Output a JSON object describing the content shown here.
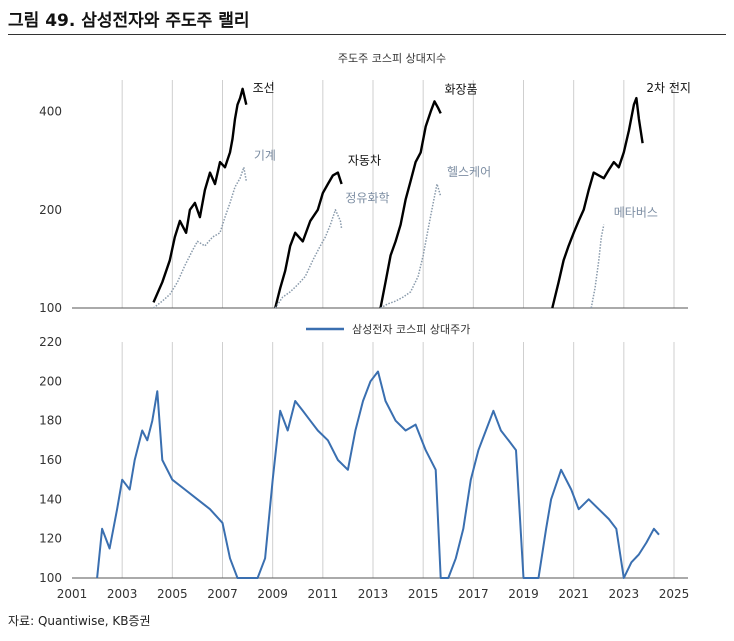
{
  "figure": {
    "title": "그림 49. 삼성전자와 주도주 랠리",
    "source": "자료: Quantiwise, KB증권"
  },
  "chart_data": [
    {
      "type": "line",
      "title": "주도주 코스피 상대지수",
      "ylim": [
        100,
        500
      ],
      "yscale": "log",
      "yticks": [
        100,
        200,
        400
      ],
      "grid": "vertical",
      "series": [
        {
          "name": "조선",
          "style": "solid",
          "color": "#000000",
          "x": [
            2004.25,
            2004.6,
            2004.9,
            2005.1,
            2005.3,
            2005.55,
            2005.7,
            2005.9,
            2006.1,
            2006.3,
            2006.5,
            2006.7,
            2006.9,
            2007.1,
            2007.3,
            2007.4,
            2007.5,
            2007.6,
            2007.7,
            2007.8,
            2007.95
          ],
          "y": [
            104,
            120,
            140,
            165,
            185,
            170,
            200,
            210,
            190,
            230,
            260,
            240,
            280,
            270,
            300,
            330,
            380,
            420,
            440,
            470,
            420
          ]
        },
        {
          "name": "기계",
          "style": "dotted",
          "color": "#8899aa",
          "x": [
            2004.25,
            2004.6,
            2004.9,
            2005.2,
            2005.5,
            2005.8,
            2006.0,
            2006.3,
            2006.6,
            2006.9,
            2007.1,
            2007.3,
            2007.5,
            2007.7,
            2007.85,
            2007.95
          ],
          "y": [
            100,
            105,
            110,
            120,
            135,
            150,
            160,
            155,
            165,
            170,
            190,
            210,
            235,
            250,
            270,
            245
          ]
        },
        {
          "name": "자동차",
          "style": "solid",
          "color": "#000000",
          "x": [
            2009.1,
            2009.3,
            2009.5,
            2009.7,
            2009.9,
            2010.2,
            2010.5,
            2010.8,
            2011.0,
            2011.2,
            2011.4,
            2011.6,
            2011.75
          ],
          "y": [
            100,
            115,
            130,
            155,
            170,
            160,
            185,
            200,
            225,
            240,
            255,
            260,
            240
          ]
        },
        {
          "name": "정유화학",
          "style": "dotted",
          "color": "#8899aa",
          "x": [
            2009.1,
            2009.4,
            2009.7,
            2010.0,
            2010.3,
            2010.6,
            2010.9,
            2011.1,
            2011.3,
            2011.5,
            2011.7,
            2011.75
          ],
          "y": [
            100,
            108,
            112,
            118,
            125,
            140,
            155,
            165,
            180,
            200,
            185,
            175
          ]
        },
        {
          "name": "화장품",
          "style": "solid",
          "color": "#000000",
          "x": [
            2013.3,
            2013.5,
            2013.7,
            2013.9,
            2014.1,
            2014.3,
            2014.5,
            2014.7,
            2014.9,
            2015.1,
            2015.3,
            2015.45,
            2015.6,
            2015.7
          ],
          "y": [
            100,
            120,
            145,
            160,
            180,
            215,
            245,
            280,
            300,
            360,
            400,
            430,
            410,
            395
          ]
        },
        {
          "name": "헬스케어",
          "style": "dotted",
          "color": "#8899aa",
          "x": [
            2013.3,
            2013.6,
            2013.9,
            2014.2,
            2014.5,
            2014.8,
            2015.0,
            2015.2,
            2015.4,
            2015.55,
            2015.7
          ],
          "y": [
            100,
            103,
            105,
            108,
            112,
            125,
            145,
            175,
            210,
            240,
            220
          ]
        },
        {
          "name": "2차 전지",
          "style": "solid",
          "color": "#000000",
          "x": [
            2020.15,
            2020.4,
            2020.6,
            2020.8,
            2021.0,
            2021.2,
            2021.4,
            2021.6,
            2021.8,
            2022.0,
            2022.2,
            2022.4,
            2022.6,
            2022.8,
            2023.0,
            2023.2,
            2023.4,
            2023.5,
            2023.6,
            2023.75
          ],
          "y": [
            100,
            120,
            140,
            155,
            170,
            185,
            200,
            230,
            260,
            255,
            250,
            265,
            280,
            270,
            300,
            350,
            420,
            440,
            380,
            320
          ]
        },
        {
          "name": "메타버스",
          "style": "dotted",
          "color": "#8899aa",
          "x": [
            2021.7,
            2021.85,
            2022.0,
            2022.1,
            2022.2
          ],
          "y": [
            100,
            115,
            140,
            165,
            180
          ]
        }
      ]
    },
    {
      "type": "line",
      "title": "",
      "ylim": [
        100,
        220
      ],
      "yticks": [
        100,
        120,
        140,
        160,
        180,
        200,
        220
      ],
      "xlim": [
        2001,
        2025
      ],
      "xticks": [
        "2001",
        "2003",
        "2005",
        "2007",
        "2009",
        "2011",
        "2013",
        "2015",
        "2017",
        "2019",
        "2021",
        "2023",
        "2025"
      ],
      "grid": "vertical",
      "legend": "top-center",
      "series": [
        {
          "name": "삼성전자 코스피 상대주가",
          "style": "mixed",
          "color": "#3a6fb0",
          "x": [
            2002.0,
            2002.2,
            2002.5,
            2002.8,
            2003.0,
            2003.3,
            2003.5,
            2003.8,
            2004.0,
            2004.2,
            2004.4,
            2004.6,
            2005.0,
            2005.5,
            2006.0,
            2006.5,
            2007.0,
            2007.3,
            2007.6,
            2007.9,
            2008.1,
            2008.4,
            2008.7,
            2009.0,
            2009.3,
            2009.6,
            2009.9,
            2010.2,
            2010.5,
            2010.8,
            2011.2,
            2011.6,
            2012.0,
            2012.3,
            2012.6,
            2012.9,
            2013.2,
            2013.5,
            2013.9,
            2014.3,
            2014.7,
            2015.1,
            2015.5,
            2015.7,
            2016.0,
            2016.3,
            2016.6,
            2016.9,
            2017.2,
            2017.5,
            2017.8,
            2018.1,
            2018.4,
            2018.7,
            2019.0,
            2019.3,
            2019.6,
            2019.9,
            2020.1,
            2020.5,
            2020.9,
            2021.2,
            2021.6,
            2022.0,
            2022.4,
            2022.7,
            2023.0,
            2023.3,
            2023.6,
            2023.9,
            2024.2,
            2024.4
          ],
          "y": [
            100,
            125,
            115,
            135,
            150,
            145,
            160,
            175,
            170,
            180,
            195,
            160,
            150,
            145,
            140,
            135,
            128,
            110,
            100,
            100,
            100,
            100,
            110,
            150,
            185,
            175,
            190,
            185,
            180,
            175,
            170,
            160,
            155,
            175,
            190,
            200,
            205,
            190,
            180,
            175,
            178,
            165,
            155,
            100,
            100,
            110,
            125,
            150,
            165,
            175,
            185,
            175,
            170,
            165,
            100,
            100,
            100,
            125,
            140,
            155,
            145,
            135,
            140,
            135,
            130,
            125,
            100,
            108,
            112,
            118,
            125,
            122
          ]
        }
      ]
    }
  ]
}
